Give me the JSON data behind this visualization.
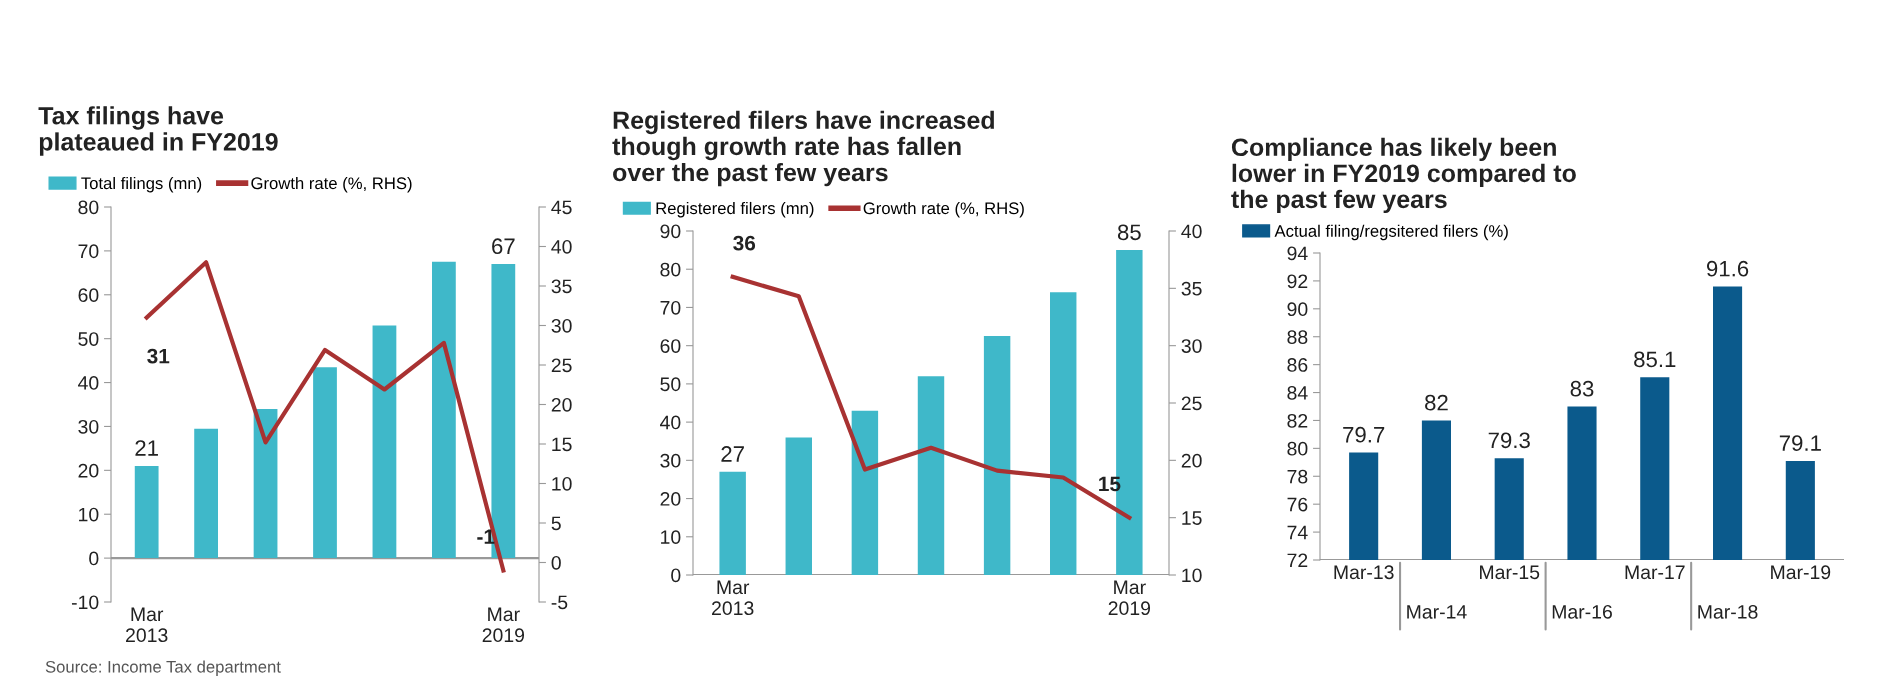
{
  "chart_data": [
    {
      "type": "bar",
      "title": "Tax filings have\nplateaued in FY2019",
      "categories": [
        "Mar\n2013",
        null,
        null,
        null,
        null,
        null,
        "Mar\n2019"
      ],
      "legend": "top",
      "grid": false,
      "ylim": [
        -10,
        80
      ],
      "yticks": [
        -10,
        0,
        10,
        20,
        30,
        40,
        50,
        60,
        70,
        80
      ],
      "y2lim": [
        -5,
        45
      ],
      "y2ticks": [
        -5,
        0,
        5,
        10,
        15,
        20,
        25,
        30,
        35,
        40,
        45
      ],
      "series": [
        {
          "name": "Total filings (mn)",
          "color": "#3fb8c9",
          "values": [
            21,
            29.5,
            34,
            43.5,
            53,
            67.5,
            67
          ],
          "value_labels": [
            "21",
            null,
            null,
            null,
            null,
            null,
            "67"
          ]
        },
        {
          "name": "Growth rate (%, RHS)",
          "type": "line",
          "axis": "y2",
          "color": "#a83232",
          "values": [
            31,
            38,
            15.2,
            26.9,
            21.9,
            27.8,
            -1
          ],
          "value_labels": [
            "31",
            null,
            null,
            null,
            null,
            null,
            "-1"
          ]
        }
      ],
      "annotations": [
        "Source: Income Tax department"
      ]
    },
    {
      "type": "bar",
      "title": "Registered filers have increased\nthough growth rate has fallen\nover the past few years",
      "categories": [
        "Mar\n2013",
        null,
        null,
        null,
        null,
        null,
        "Mar\n2019"
      ],
      "legend": "top",
      "grid": false,
      "ylim": [
        0,
        90
      ],
      "yticks": [
        0,
        10,
        20,
        30,
        40,
        50,
        60,
        70,
        80,
        90
      ],
      "y2lim": [
        10,
        40
      ],
      "y2ticks": [
        10,
        15,
        20,
        25,
        30,
        35,
        40
      ],
      "series": [
        {
          "name": "Registered filers (mn)",
          "color": "#3fb8c9",
          "values": [
            27,
            36,
            43,
            52,
            62.5,
            74,
            85
          ],
          "value_labels": [
            "27",
            null,
            null,
            null,
            null,
            null,
            "85"
          ]
        },
        {
          "name": "Growth rate (%, RHS)",
          "type": "line",
          "axis": "y2",
          "color": "#a83232",
          "values": [
            36,
            34.3,
            19.2,
            21.1,
            19.1,
            18.5,
            15
          ],
          "value_labels": [
            "36",
            null,
            null,
            null,
            null,
            null,
            "15"
          ]
        }
      ]
    },
    {
      "type": "bar",
      "title": "Compliance has likely been\nlower in FY2019 compared to\nthe past few years",
      "categories": [
        "Mar-13",
        "Mar-14",
        "Mar-15",
        "Mar-16",
        "Mar-17",
        "Mar-18",
        "Mar-19"
      ],
      "legend": "top",
      "grid": false,
      "data_labels": true,
      "ylim": [
        72,
        94
      ],
      "yticks": [
        72,
        74,
        76,
        78,
        80,
        82,
        84,
        86,
        88,
        90,
        92,
        94
      ],
      "series": [
        {
          "name": "Actual filing/regsitered filers (%)",
          "color": "#0b5a8c",
          "values": [
            79.7,
            82,
            79.3,
            83,
            85.1,
            91.6,
            79.1
          ]
        }
      ]
    }
  ]
}
